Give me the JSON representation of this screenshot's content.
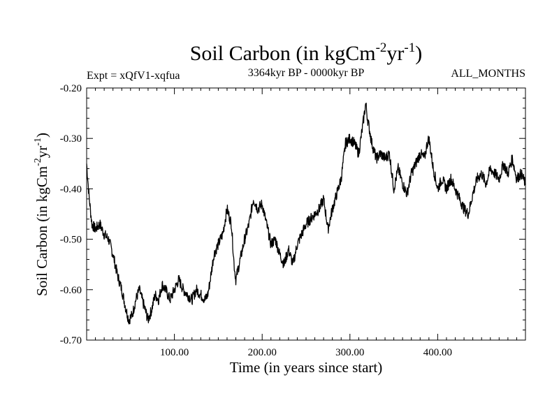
{
  "chart_data": {
    "type": "line",
    "title": {
      "main": "Soil Carbon (in kgCm",
      "sup1": "-2",
      "mid": "yr",
      "sup2": "-1",
      "end": ")"
    },
    "subtitle_left": "Expt = xQfV1-xqfua",
    "subtitle_center": "3364kyr BP - 0000kyr BP",
    "subtitle_right": "ALL_MONTHS",
    "xlabel": "Time (in years since start)",
    "ylabel": {
      "main": "Soil Carbon (in kgCm",
      "sup1": "-2",
      "mid": "yr",
      "sup2": "-1",
      "end": ")"
    },
    "xlim": [
      0,
      500
    ],
    "ylim": [
      -0.7,
      -0.2
    ],
    "xticks": [
      100,
      200,
      300,
      400
    ],
    "xtick_labels": [
      "100.00",
      "200.00",
      "300.00",
      "400.00"
    ],
    "yticks": [
      -0.7,
      -0.6,
      -0.5,
      -0.4,
      -0.3,
      -0.2
    ],
    "ytick_labels": [
      "-0.70",
      "-0.60",
      "-0.50",
      "-0.40",
      "-0.30",
      "-0.20"
    ],
    "grid": false,
    "series": [
      {
        "name": "Soil Carbon",
        "color": "#000000",
        "x": [
          0,
          3,
          6,
          10,
          15,
          20,
          25,
          30,
          35,
          40,
          45,
          48,
          52,
          56,
          60,
          65,
          70,
          74,
          78,
          82,
          86,
          90,
          95,
          100,
          105,
          110,
          115,
          120,
          125,
          130,
          135,
          138,
          140,
          145,
          150,
          155,
          160,
          165,
          168,
          170,
          175,
          180,
          185,
          190,
          195,
          200,
          205,
          210,
          215,
          220,
          225,
          230,
          235,
          240,
          245,
          250,
          255,
          260,
          265,
          270,
          275,
          280,
          285,
          290,
          295,
          300,
          305,
          310,
          315,
          318,
          320,
          325,
          330,
          335,
          340,
          345,
          350,
          355,
          360,
          365,
          370,
          375,
          380,
          385,
          388,
          390,
          395,
          400,
          405,
          410,
          415,
          420,
          425,
          430,
          435,
          440,
          445,
          450,
          455,
          460,
          465,
          470,
          475,
          480,
          485,
          490,
          495,
          500
        ],
        "y": [
          -0.35,
          -0.42,
          -0.47,
          -0.48,
          -0.47,
          -0.49,
          -0.5,
          -0.53,
          -0.57,
          -0.6,
          -0.64,
          -0.66,
          -0.65,
          -0.62,
          -0.6,
          -0.63,
          -0.66,
          -0.64,
          -0.61,
          -0.62,
          -0.59,
          -0.6,
          -0.62,
          -0.6,
          -0.58,
          -0.6,
          -0.61,
          -0.62,
          -0.6,
          -0.61,
          -0.62,
          -0.61,
          -0.59,
          -0.53,
          -0.51,
          -0.49,
          -0.44,
          -0.47,
          -0.55,
          -0.58,
          -0.54,
          -0.5,
          -0.47,
          -0.42,
          -0.44,
          -0.43,
          -0.47,
          -0.51,
          -0.5,
          -0.53,
          -0.55,
          -0.52,
          -0.55,
          -0.51,
          -0.49,
          -0.47,
          -0.46,
          -0.45,
          -0.44,
          -0.42,
          -0.48,
          -0.44,
          -0.41,
          -0.38,
          -0.31,
          -0.3,
          -0.31,
          -0.33,
          -0.27,
          -0.23,
          -0.26,
          -0.31,
          -0.34,
          -0.33,
          -0.34,
          -0.33,
          -0.4,
          -0.36,
          -0.39,
          -0.41,
          -0.37,
          -0.35,
          -0.33,
          -0.34,
          -0.31,
          -0.3,
          -0.36,
          -0.4,
          -0.38,
          -0.4,
          -0.38,
          -0.4,
          -0.42,
          -0.44,
          -0.45,
          -0.41,
          -0.38,
          -0.37,
          -0.39,
          -0.36,
          -0.37,
          -0.38,
          -0.35,
          -0.37,
          -0.34,
          -0.38,
          -0.37,
          -0.39
        ]
      }
    ]
  }
}
